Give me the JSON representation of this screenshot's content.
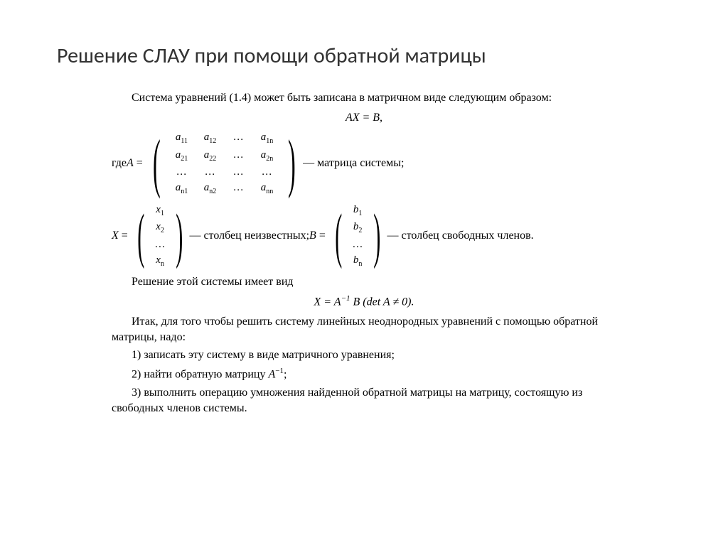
{
  "title": "Решение СЛАУ при помощи обратной матрицы",
  "intro": "Система уравнений (1.4) может быть записана в матричном виде следующим образом:",
  "eq1": "AX = B,",
  "whereA_pre": "где  ",
  "whereA_var": "A",
  "matA": {
    "r1": [
      "a",
      "a",
      "…",
      "a"
    ],
    "s1": [
      "11",
      "12",
      "",
      "1n"
    ],
    "r2": [
      "a",
      "a",
      "…",
      "a"
    ],
    "s2": [
      "21",
      "22",
      "",
      "2n"
    ],
    "r3": [
      "…",
      "…",
      "…",
      "…"
    ],
    "r4": [
      "a",
      "a",
      "…",
      "a"
    ],
    "s4": [
      "n1",
      "n2",
      "",
      "nn"
    ]
  },
  "whereA_post": " — матрица системы;",
  "X_var": "X",
  "vecX": {
    "e": [
      "x",
      "x",
      "…",
      "x"
    ],
    "s": [
      "1",
      "2",
      "",
      "n"
    ]
  },
  "X_post": " — столбец неизвестных;  ",
  "B_var": "B",
  "vecB": {
    "e": [
      "b",
      "b",
      "…",
      "b"
    ],
    "s": [
      "1",
      "2",
      "",
      "n"
    ]
  },
  "B_post": " — столбец свободных членов.",
  "solIntro": "Решение этой системы имеет вид",
  "eq2_a": "X = A",
  "eq2_sup": "−1",
  "eq2_b": " B (det A ≠ 0).",
  "conclusion": "Итак, для того чтобы решить систему линейных неоднородных уравнений с помощью обратной матрицы, надо:",
  "step1": "1) записать эту систему в виде матричного уравнения;",
  "step2a": "2) найти обратную матрицу ",
  "step2var": "A",
  "step2sup": "−1",
  "step2b": ";",
  "step3": "3) выполнить операцию умножения найденной обратной матрицы на матрицу, состоящую из свободных членов системы."
}
